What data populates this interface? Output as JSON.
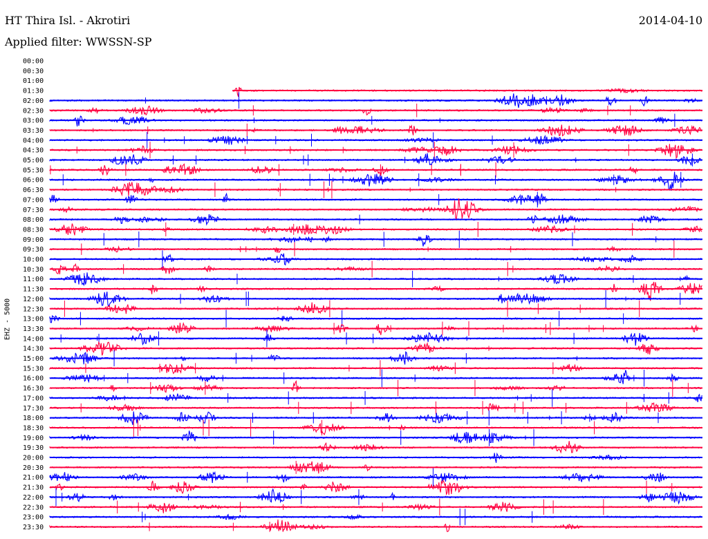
{
  "header": {
    "station": "HT Thira Isl. - Akrotiri",
    "date": "2014-04-10",
    "filter": "Applied filter: WWSSN-SP",
    "channel": "EHZ - 5000"
  },
  "colors": {
    "trace_a": "#0000ff",
    "trace_b": "#ff0040"
  },
  "chart_data": {
    "type": "line",
    "title": "HT Thira Isl. - Akrotiri",
    "ylabel": "EHZ - 5000",
    "time_labels": [
      "00:00",
      "00:30",
      "01:00",
      "01:30",
      "02:00",
      "02:30",
      "03:00",
      "03:30",
      "04:00",
      "04:30",
      "05:00",
      "05:30",
      "06:00",
      "06:30",
      "07:00",
      "07:30",
      "08:00",
      "08:30",
      "09:00",
      "09:30",
      "10:00",
      "10:30",
      "11:00",
      "11:30",
      "12:00",
      "12:30",
      "13:00",
      "13:30",
      "14:00",
      "14:30",
      "15:00",
      "15:30",
      "16:00",
      "16:30",
      "17:00",
      "17:30",
      "18:00",
      "18:30",
      "19:00",
      "19:30",
      "20:00",
      "20:30",
      "21:00",
      "21:30",
      "22:00",
      "22:30",
      "23:00",
      "23:30"
    ],
    "first_trace_start_fraction": 0.28,
    "first_trace_row": "01:30"
  }
}
